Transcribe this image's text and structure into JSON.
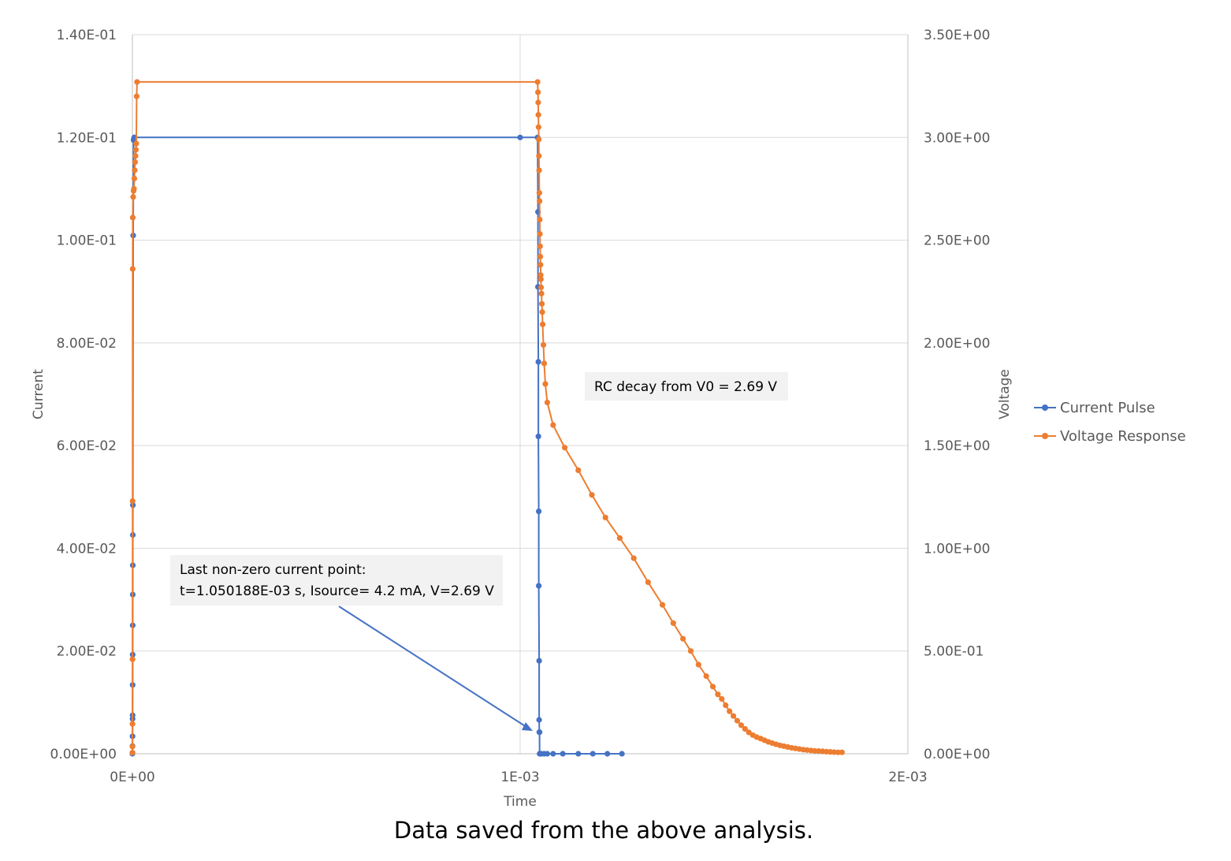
{
  "caption": "Data saved from the above analysis.",
  "chart_data": {
    "type": "scatter",
    "xlabel": "Time",
    "ylabel": "Current",
    "y2label": "Voltage",
    "xlim": [
      0,
      0.002
    ],
    "ylim": [
      0,
      0.14
    ],
    "y2lim": [
      0,
      3.5
    ],
    "x_ticks": [
      0,
      0.001,
      0.002
    ],
    "x_tick_labels": [
      "0E+00",
      "1E-03",
      "2E-03"
    ],
    "y_ticks": [
      0,
      0.02,
      0.04,
      0.06,
      0.08,
      0.1,
      0.12,
      0.14
    ],
    "y_tick_labels": [
      "0.00E+00",
      "2.00E-02",
      "4.00E-02",
      "6.00E-02",
      "8.00E-02",
      "1.00E-01",
      "1.20E-01",
      "1.40E-01"
    ],
    "y2_ticks": [
      0,
      0.5,
      1.0,
      1.5,
      2.0,
      2.5,
      3.0,
      3.5
    ],
    "y2_tick_labels": [
      "0.00E+00",
      "5.00E-01",
      "1.00E+00",
      "1.50E+00",
      "2.00E+00",
      "2.50E+00",
      "3.00E+00",
      "3.50E+00"
    ],
    "grid": true,
    "legend_position": "right",
    "series": [
      {
        "name": "Current Pulse",
        "axis": "left",
        "color": "#4472C4",
        "x": [
          0,
          1e-07,
          2e-07,
          3e-07,
          4e-07,
          5e-07,
          6e-07,
          7e-07,
          8e-07,
          9e-07,
          1e-06,
          1.1e-06,
          1.2e-06,
          2e-06,
          3e-06,
          4e-06,
          5e-06,
          5.17e-06,
          0.001,
          0.001045,
          0.001046,
          0.001046,
          0.001047,
          0.001047,
          0.001048,
          0.001048,
          0.001049,
          0.001049,
          0.0010495,
          0.00105,
          0.00105019,
          0.001052,
          0.001055,
          0.001062,
          0.00107,
          0.001085,
          0.00111,
          0.00115,
          0.0011875,
          0.001225,
          0.0012625
        ],
        "y": [
          0,
          0.0002,
          0.0015,
          0.0034,
          0.0068,
          0.0075,
          0.0134,
          0.0193,
          0.025,
          0.031,
          0.0367,
          0.0426,
          0.0484,
          0.1009,
          0.1195,
          0.1198,
          0.12,
          0.12,
          0.12,
          0.12,
          0.1055,
          0.0909,
          0.0763,
          0.0618,
          0.0472,
          0.0327,
          0.0181,
          0.0066,
          0.0042,
          0.0042,
          0,
          0,
          0,
          0,
          0,
          0,
          0,
          0,
          0,
          0,
          0
        ]
      },
      {
        "name": "Voltage Response",
        "axis": "right",
        "color": "#ED7D31",
        "x": [
          0,
          1e-07,
          2e-07,
          3e-07,
          5e-07,
          7e-07,
          1e-06,
          2e-06,
          3e-06,
          4e-06,
          5e-06,
          6e-06,
          7e-06,
          8e-06,
          9e-06,
          1e-05,
          1.1e-05,
          1.2e-05,
          0.001045,
          0.001046,
          0.0010465,
          0.001047,
          0.0010475,
          0.001048,
          0.0010485,
          0.001049,
          0.0010495,
          0.00105,
          0.0010505,
          0.001051,
          0.0010515,
          0.001052,
          0.0010525,
          0.001053,
          0.0010535,
          0.001054,
          0.001055,
          0.001056,
          0.001057,
          0.001058,
          0.00106,
          0.001062,
          0.001065,
          0.00107,
          0.001085,
          0.001115,
          0.00115,
          0.001185,
          0.00122,
          0.001257,
          0.001293,
          0.00133,
          0.001367,
          0.001395,
          0.00142,
          0.00144,
          0.00146,
          0.00148,
          0.001497,
          0.00151,
          0.00152,
          0.00153,
          0.00154,
          0.00155,
          0.00156,
          0.00157,
          0.00158,
          0.00159,
          0.0016,
          0.00161,
          0.00162,
          0.00163,
          0.00164,
          0.00165,
          0.00166,
          0.00167,
          0.00168,
          0.00169,
          0.0017,
          0.00171,
          0.00172,
          0.00173,
          0.00174,
          0.00175,
          0.00176,
          0.00177,
          0.00178,
          0.00179,
          0.0018,
          0.00181,
          0.00182,
          0.00183
        ],
        "y": [
          0.005,
          0.035,
          0.145,
          0.46,
          1.23,
          2.36,
          2.61,
          2.71,
          2.74,
          2.75,
          2.8,
          2.84,
          2.88,
          2.91,
          2.94,
          2.97,
          3.2,
          3.27,
          3.27,
          3.22,
          3.17,
          3.11,
          3.05,
          2.99,
          2.91,
          2.84,
          2.73,
          2.69,
          2.6,
          2.53,
          2.47,
          2.42,
          2.38,
          2.33,
          2.31,
          2.27,
          2.24,
          2.19,
          2.15,
          2.09,
          1.99,
          1.9,
          1.8,
          1.71,
          1.6,
          1.49,
          1.38,
          1.26,
          1.15,
          1.05,
          0.952,
          0.835,
          0.725,
          0.636,
          0.56,
          0.5,
          0.434,
          0.378,
          0.327,
          0.289,
          0.267,
          0.236,
          0.207,
          0.184,
          0.161,
          0.139,
          0.121,
          0.104,
          0.091,
          0.081,
          0.074,
          0.066,
          0.058,
          0.052,
          0.046,
          0.041,
          0.037,
          0.033,
          0.029,
          0.026,
          0.023,
          0.02,
          0.018,
          0.016,
          0.014,
          0.013,
          0.012,
          0.01,
          0.009,
          0.008,
          0.007,
          0.007
        ]
      }
    ],
    "annotations": [
      {
        "text": "RC decay from V0 = 2.69 V"
      },
      {
        "lines": [
          "Last non-zero current point:",
          "t=1.050188E-03 s, Isource= 4.2 mA, V=2.69 V"
        ]
      }
    ]
  }
}
